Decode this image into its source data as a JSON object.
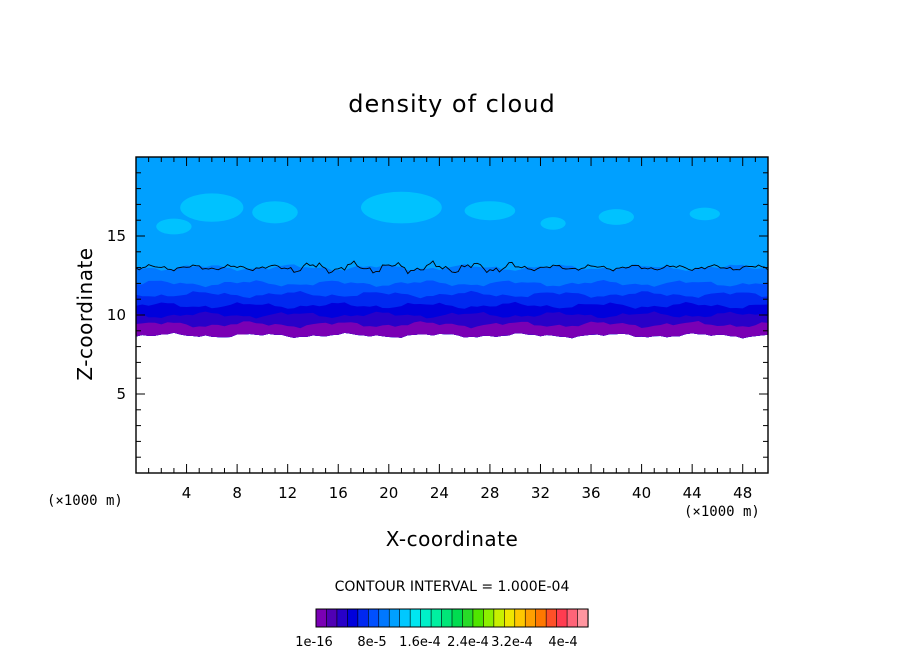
{
  "chart_data": {
    "type": "heatmap",
    "title": "density of cloud",
    "xlabel": "X-coordinate",
    "ylabel": "Z-coordinate",
    "x_unit_label": "(×1000 m)",
    "z_unit_label": "(×1000 m)",
    "xlim": [
      0,
      50
    ],
    "ylim": [
      0,
      20
    ],
    "x_ticks": [
      4,
      8,
      12,
      16,
      20,
      24,
      28,
      32,
      36,
      40,
      44,
      48
    ],
    "y_ticks": [
      5,
      10,
      15
    ],
    "contour_interval_text": "CONTOUR INTERVAL = 1.000E-04",
    "colorbar": {
      "colors": [
        "#7a00b4",
        "#5000b4",
        "#2800c8",
        "#0000dc",
        "#0028f0",
        "#0050ff",
        "#0078ff",
        "#00a0ff",
        "#00c8ff",
        "#00e6f0",
        "#00f0c8",
        "#00f0a0",
        "#00e678",
        "#00dc50",
        "#28dc28",
        "#50e600",
        "#8cf000",
        "#c8f000",
        "#f0e600",
        "#ffc800",
        "#ffa000",
        "#ff7800",
        "#ff5028",
        "#ff3c50",
        "#ff6478",
        "#ff96a0"
      ],
      "labels": [
        "1e-16",
        "8e-5",
        "1.6e-4",
        "2.4e-4",
        "3.2e-4",
        "4e-4"
      ]
    },
    "field_bands": [
      {
        "z_bottom": 8.5,
        "z_top": 9.4,
        "color": "#7a00b4"
      },
      {
        "z_bottom": 9.4,
        "z_top": 10.0,
        "color": "#2800c8"
      },
      {
        "z_bottom": 10.0,
        "z_top": 10.6,
        "color": "#0000dc"
      },
      {
        "z_bottom": 10.6,
        "z_top": 11.3,
        "color": "#0028f0"
      },
      {
        "z_bottom": 11.3,
        "z_top": 12.0,
        "color": "#0050ff"
      },
      {
        "z_bottom": 12.0,
        "z_top": 13.0,
        "color": "#0078ff"
      },
      {
        "z_bottom": 13.0,
        "z_top": 20.0,
        "color": "#00a0ff"
      }
    ],
    "cloud_base_z": 8.7,
    "contour_line_z": 13.0
  }
}
